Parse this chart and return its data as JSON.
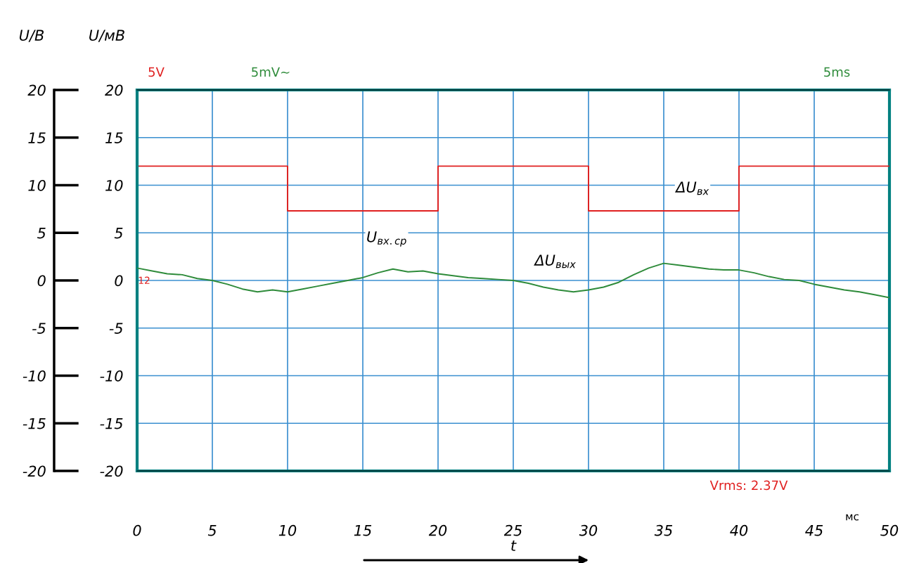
{
  "chart_data": {
    "type": "line",
    "xlabel": "t",
    "ylabel": "U/В",
    "y2label": "U/мВ",
    "x": [
      0,
      1,
      2,
      3,
      4,
      5,
      6,
      7,
      8,
      9,
      10,
      11,
      12,
      13,
      14,
      15,
      16,
      17,
      18,
      19,
      20,
      21,
      22,
      23,
      24,
      25,
      26,
      27,
      28,
      29,
      30,
      31,
      32,
      33,
      34,
      35,
      36,
      37,
      38,
      39,
      40,
      41,
      42,
      43,
      44,
      45,
      46,
      47,
      48,
      49,
      50
    ],
    "series": [
      {
        "color": "#e02020",
        "x": [
          0,
          10,
          10,
          20,
          20,
          30,
          30,
          40,
          40,
          50
        ],
        "values": [
          12,
          12,
          7.3,
          7.3,
          12,
          12,
          7.3,
          7.3,
          12,
          12
        ]
      },
      {
        "color": "#2e8b3a",
        "axis": "y2",
        "values": [
          1.3,
          1.0,
          0.7,
          0.6,
          0.2,
          0.0,
          -0.4,
          -0.9,
          -1.2,
          -1.0,
          -1.2,
          -0.9,
          -0.6,
          -0.3,
          0.0,
          0.3,
          0.8,
          1.2,
          0.9,
          1.0,
          0.7,
          0.5,
          0.3,
          0.2,
          0.1,
          0.0,
          -0.3,
          -0.7,
          -1.0,
          -1.2,
          -1.0,
          -0.7,
          -0.2,
          0.6,
          1.3,
          1.8,
          1.6,
          1.4,
          1.2,
          1.1,
          1.1,
          0.8,
          0.4,
          0.1,
          0.0,
          -0.4,
          -0.7,
          -1.0,
          -1.2,
          -1.5,
          -1.8
        ]
      }
    ],
    "xlim": [
      0,
      50
    ],
    "xticks": [
      0,
      5,
      10,
      15,
      20,
      25,
      30,
      35,
      40,
      45,
      50
    ],
    "ylim": [
      -20,
      20
    ],
    "yticks": [
      -20,
      -15,
      -10,
      -5,
      0,
      5,
      10,
      15,
      20
    ],
    "y2lim": [
      -20,
      20
    ],
    "y2ticks": [
      -20,
      -15,
      -10,
      -5,
      0,
      5,
      10,
      15,
      20
    ],
    "grid": true,
    "marker": "none",
    "line_style": "solid",
    "annotations": [
      "5V",
      "5mV~",
      "5ms",
      "Vrms: 2.37V",
      "12",
      "мс",
      "ΔU$_{вх}$",
      "U$_{вх.ср}$",
      "ΔU$_{вых}$"
    ]
  }
}
